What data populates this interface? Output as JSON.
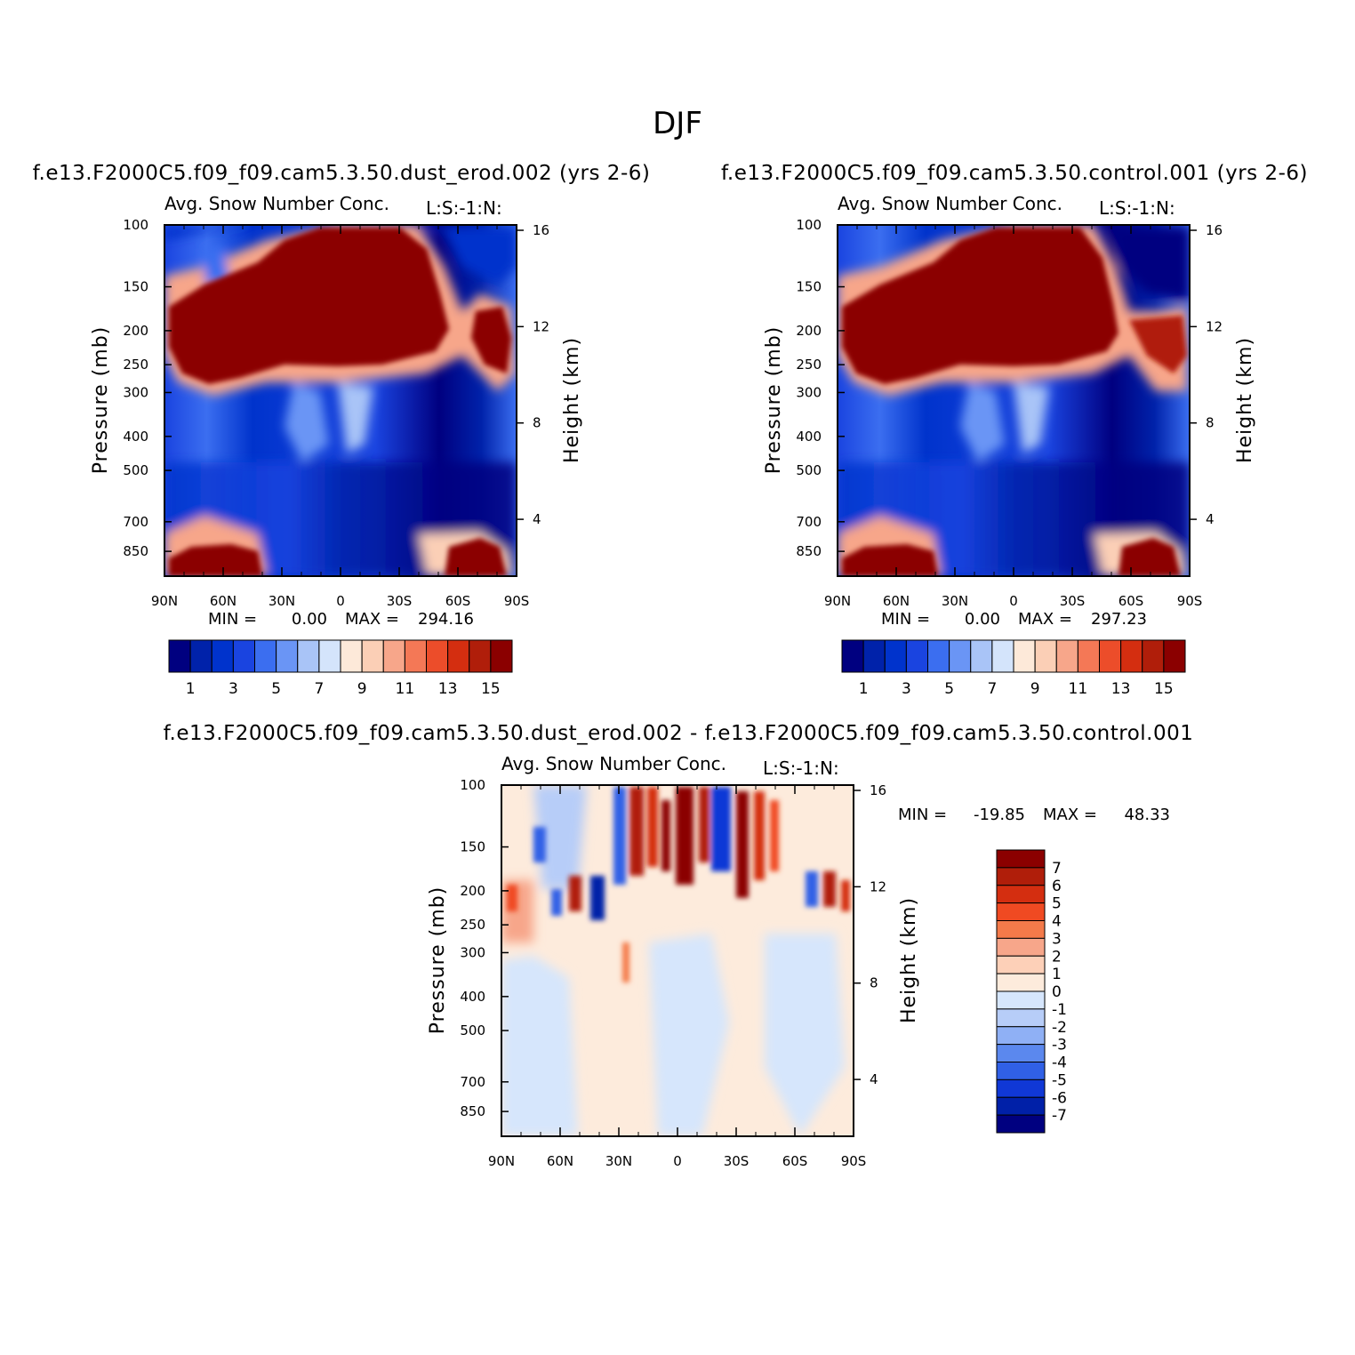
{
  "title": "DJF",
  "colors": {
    "seq": [
      "#000080",
      "#0022aa",
      "#0033cc",
      "#1a44e0",
      "#3b6ef0",
      "#6a95f5",
      "#a9c4f7",
      "#d4e4fb",
      "#fde9d9",
      "#fbcfb6",
      "#f7a68a",
      "#f47856",
      "#ec4d2a",
      "#d42e10",
      "#b01e0a",
      "#8b0000"
    ],
    "div": [
      "#8b0000",
      "#b01e0a",
      "#d42e10",
      "#f04a22",
      "#f47a4a",
      "#f7a68a",
      "#fdd0b8",
      "#fdebdc",
      "#d6e6fc",
      "#b7cdf8",
      "#8fb0f5",
      "#5b88ee",
      "#3060e6",
      "#1038d6",
      "#0020a8",
      "#000080"
    ]
  },
  "chart_data": [
    {
      "type": "heatmap",
      "id": "panel-dust",
      "title": "f.e13.F2000C5.f09_f09.cam5.3.50.dust_erod.002 (yrs 2-6)",
      "variable": "Avg. Snow Number Conc.",
      "corner_label": "L:S:-1:N:",
      "ylabel": "Pressure (mb)",
      "ylabel_right": "Height (km)",
      "x_ticks": [
        "90N",
        "60N",
        "30N",
        "0",
        "30S",
        "60S",
        "90S"
      ],
      "x_values": [
        90,
        60,
        30,
        0,
        -30,
        -60,
        -90
      ],
      "y_ticks": [
        "100",
        "150",
        "200",
        "250",
        "300",
        "400",
        "500",
        "700",
        "850"
      ],
      "y_values": [
        100,
        150,
        200,
        250,
        300,
        400,
        500,
        700,
        850
      ],
      "y_right_ticks": [
        "16",
        "12",
        "8",
        "4"
      ],
      "y_right_values": [
        16,
        12,
        8,
        4
      ],
      "min_label": "MIN =",
      "min_value": "0.00",
      "max_label": "MAX =",
      "max_value": "294.16",
      "colorbar_labels": [
        "1",
        "3",
        "5",
        "7",
        "9",
        "11",
        "13",
        "15"
      ]
    },
    {
      "type": "heatmap",
      "id": "panel-control",
      "title": "f.e13.F2000C5.f09_f09.cam5.3.50.control.001 (yrs 2-6)",
      "variable": "Avg. Snow Number Conc.",
      "corner_label": "L:S:-1:N:",
      "ylabel": "Pressure (mb)",
      "ylabel_right": "Height (km)",
      "x_ticks": [
        "90N",
        "60N",
        "30N",
        "0",
        "30S",
        "60S",
        "90S"
      ],
      "x_values": [
        90,
        60,
        30,
        0,
        -30,
        -60,
        -90
      ],
      "y_ticks": [
        "100",
        "150",
        "200",
        "250",
        "300",
        "400",
        "500",
        "700",
        "850"
      ],
      "y_values": [
        100,
        150,
        200,
        250,
        300,
        400,
        500,
        700,
        850
      ],
      "y_right_ticks": [
        "16",
        "12",
        "8",
        "4"
      ],
      "y_right_values": [
        16,
        12,
        8,
        4
      ],
      "min_label": "MIN =",
      "min_value": "0.00",
      "max_label": "MAX =",
      "max_value": "297.23",
      "colorbar_labels": [
        "1",
        "3",
        "5",
        "7",
        "9",
        "11",
        "13",
        "15"
      ]
    },
    {
      "type": "heatmap",
      "id": "panel-diff",
      "title": "f.e13.F2000C5.f09_f09.cam5.3.50.dust_erod.002 - f.e13.F2000C5.f09_f09.cam5.3.50.control.001",
      "variable": "Avg. Snow Number Conc.",
      "corner_label": "L:S:-1:N:",
      "ylabel": "Pressure (mb)",
      "ylabel_right": "Height (km)",
      "x_ticks": [
        "90N",
        "60N",
        "30N",
        "0",
        "30S",
        "60S",
        "90S"
      ],
      "x_values": [
        90,
        60,
        30,
        0,
        -30,
        -60,
        -90
      ],
      "y_ticks": [
        "100",
        "150",
        "200",
        "250",
        "300",
        "400",
        "500",
        "700",
        "850"
      ],
      "y_values": [
        100,
        150,
        200,
        250,
        300,
        400,
        500,
        700,
        850
      ],
      "y_right_ticks": [
        "16",
        "12",
        "8",
        "4"
      ],
      "y_right_values": [
        16,
        12,
        8,
        4
      ],
      "min_label": "MIN =",
      "min_value": "-19.85",
      "max_label": "MAX =",
      "max_value": "48.33",
      "colorbar_labels": [
        "7",
        "6",
        "5",
        "4",
        "3",
        "2",
        "1",
        "0",
        "-1",
        "-2",
        "-3",
        "-4",
        "-5",
        "-6",
        "-7"
      ]
    }
  ]
}
